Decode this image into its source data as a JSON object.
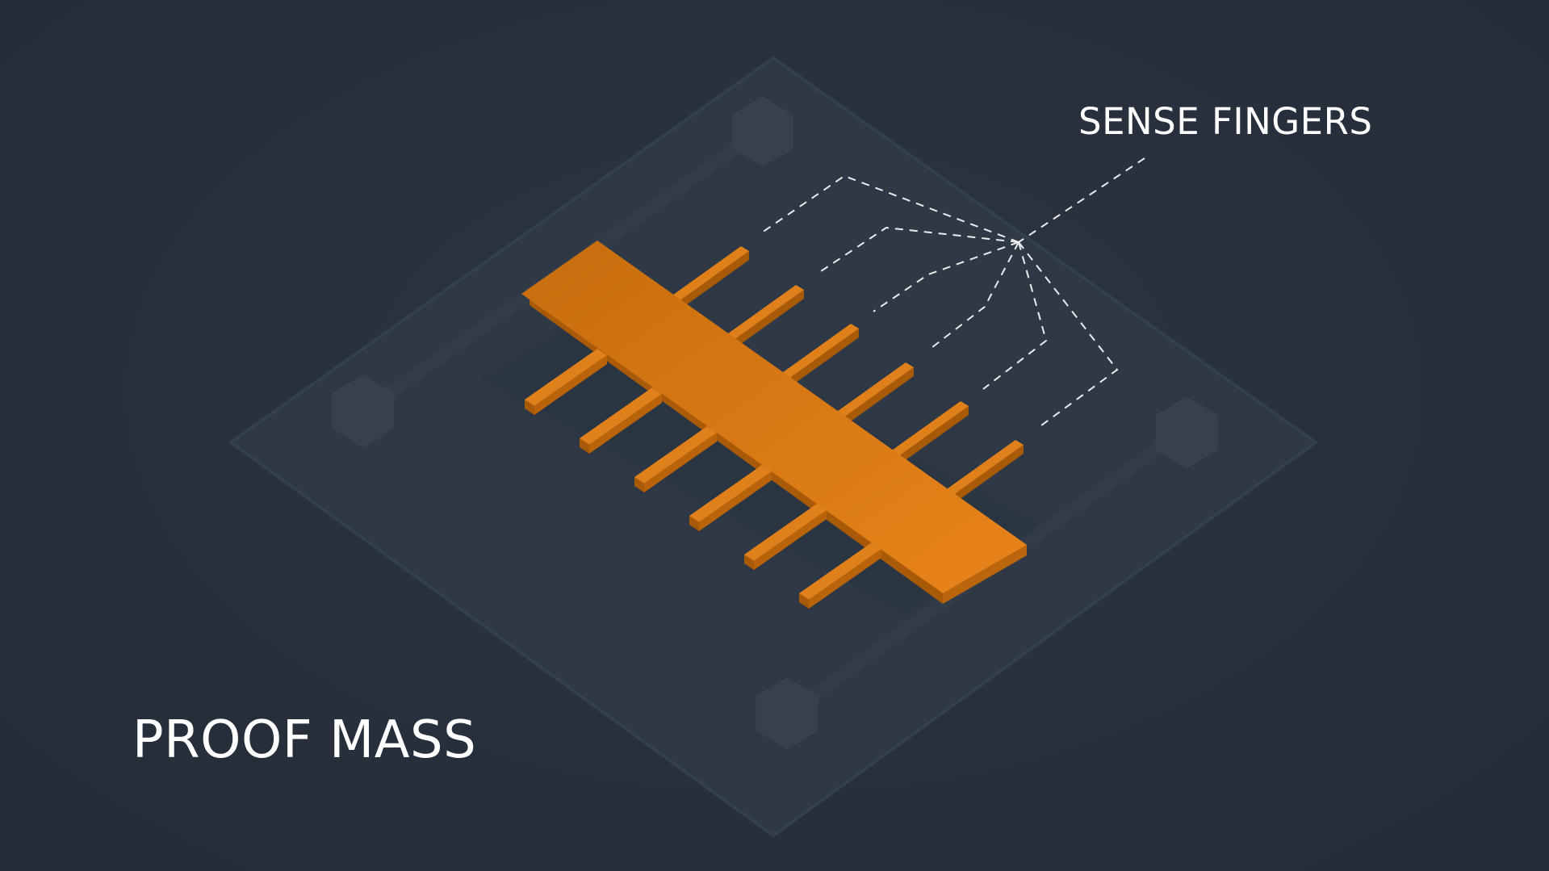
{
  "labels": {
    "sense_fingers": "SENSE FINGERS",
    "proof_mass": "PROOF MASS"
  },
  "colors": {
    "background": "#262f3b",
    "substrate": "#2f3945",
    "proof_mass_top": "#d6770f",
    "proof_mass_side": "#a95a08",
    "callout_line": "#ffffff",
    "label_text": "#ffffff"
  },
  "structure": {
    "finger_pairs": 6,
    "callout_targets": 6
  }
}
